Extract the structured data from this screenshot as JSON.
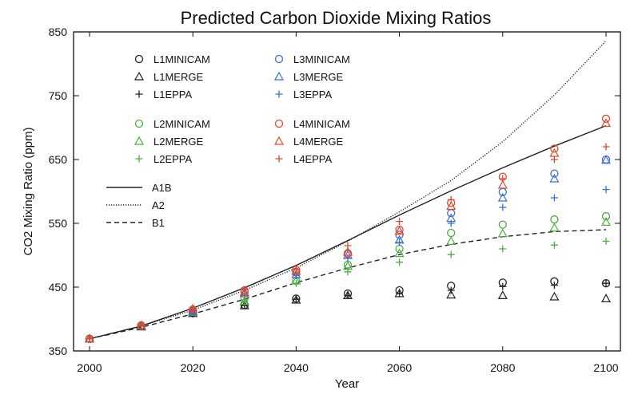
{
  "chart_data": {
    "type": "line",
    "title": "Predicted Carbon Dioxide Mixing Ratios",
    "xlabel": "Year",
    "ylabel": "CO2 Mixing Ratio (ppm)",
    "xlim": [
      2000,
      2100
    ],
    "ylim": [
      350,
      850
    ],
    "xticks": [
      2000,
      2020,
      2040,
      2060,
      2080,
      2100
    ],
    "yticks": [
      350,
      450,
      550,
      650,
      750,
      850
    ],
    "grid": false,
    "legend_placement": "top-left",
    "x": [
      2000,
      2010,
      2020,
      2030,
      2040,
      2050,
      2060,
      2070,
      2080,
      2090,
      2100
    ],
    "colors": {
      "L1": "#222222",
      "L2": "#4caf3f",
      "L3": "#3b6fd6",
      "L4": "#e0492a",
      "lines": "#222222"
    },
    "series": [
      {
        "name": "L1MINICAM",
        "marker": "circle",
        "color": "#222222",
        "values": [
          369,
          389,
          410,
          422,
          432,
          440,
          445,
          452,
          457,
          459,
          456
        ]
      },
      {
        "name": "L1MERGE",
        "marker": "triangle",
        "color": "#222222",
        "values": [
          369,
          388,
          409,
          421,
          430,
          437,
          440,
          438,
          437,
          435,
          432
        ]
      },
      {
        "name": "L1EPPA",
        "marker": "plus",
        "color": "#222222",
        "values": [
          369,
          389,
          408,
          421,
          431,
          437,
          440,
          445,
          451,
          453,
          456
        ]
      },
      {
        "name": "L2MINICAM",
        "marker": "circle",
        "color": "#4caf3f",
        "values": [
          369,
          389,
          412,
          432,
          460,
          485,
          510,
          535,
          548,
          556,
          561
        ]
      },
      {
        "name": "L2MERGE",
        "marker": "triangle",
        "color": "#4caf3f",
        "values": [
          369,
          389,
          411,
          428,
          460,
          483,
          503,
          522,
          534,
          543,
          552
        ]
      },
      {
        "name": "L2EPPA",
        "marker": "plus",
        "color": "#4caf3f",
        "values": [
          369,
          389,
          411,
          430,
          456,
          474,
          489,
          501,
          510,
          516,
          522
        ]
      },
      {
        "name": "L3MINICAM",
        "marker": "circle",
        "color": "#3b6fd6",
        "values": [
          369,
          390,
          413,
          443,
          474,
          502,
          532,
          566,
          599,
          628,
          650
        ]
      },
      {
        "name": "L3MERGE",
        "marker": "triangle",
        "color": "#3b6fd6",
        "values": [
          369,
          389,
          412,
          440,
          470,
          500,
          524,
          558,
          590,
          620,
          649
        ]
      },
      {
        "name": "L3EPPA",
        "marker": "plus",
        "color": "#3b6fd6",
        "values": [
          369,
          389,
          413,
          440,
          468,
          495,
          520,
          550,
          575,
          590,
          603
        ]
      },
      {
        "name": "L4MINICAM",
        "marker": "circle",
        "color": "#e0492a",
        "values": [
          369,
          390,
          415,
          445,
          477,
          503,
          540,
          582,
          623,
          667,
          714
        ]
      },
      {
        "name": "L4MERGE",
        "marker": "triangle",
        "color": "#e0492a",
        "values": [
          369,
          390,
          416,
          442,
          475,
          505,
          538,
          577,
          610,
          660,
          707
        ]
      },
      {
        "name": "L4EPPA",
        "marker": "plus",
        "color": "#e0492a",
        "values": [
          369,
          390,
          415,
          446,
          478,
          515,
          553,
          587,
          620,
          650,
          670
        ]
      }
    ],
    "lines": [
      {
        "name": "A1B",
        "style": "solid",
        "values": [
          369,
          389,
          417,
          449,
          484,
          523,
          563,
          601,
          637,
          671,
          703
        ]
      },
      {
        "name": "A2",
        "style": "dotted",
        "values": [
          369,
          389,
          414,
          445,
          480,
          522,
          568,
          617,
          678,
          751,
          836
        ]
      },
      {
        "name": "B1",
        "style": "dashed",
        "values": [
          369,
          387,
          408,
          431,
          457,
          480,
          501,
          517,
          529,
          537,
          540
        ]
      }
    ]
  }
}
